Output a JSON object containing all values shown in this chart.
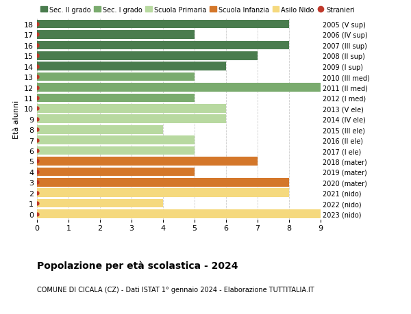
{
  "ages": [
    18,
    17,
    16,
    15,
    14,
    13,
    12,
    11,
    10,
    9,
    8,
    7,
    6,
    5,
    4,
    3,
    2,
    1,
    0
  ],
  "right_labels": [
    "2005 (V sup)",
    "2006 (IV sup)",
    "2007 (III sup)",
    "2008 (II sup)",
    "2009 (I sup)",
    "2010 (III med)",
    "2011 (II med)",
    "2012 (I med)",
    "2013 (V ele)",
    "2014 (IV ele)",
    "2015 (III ele)",
    "2016 (II ele)",
    "2017 (I ele)",
    "2018 (mater)",
    "2019 (mater)",
    "2020 (mater)",
    "2021 (nido)",
    "2022 (nido)",
    "2023 (nido)"
  ],
  "values": [
    8,
    5,
    8,
    7,
    6,
    5,
    9,
    5,
    6,
    6,
    4,
    5,
    5,
    7,
    5,
    8,
    8,
    4,
    9
  ],
  "colors": [
    "#4a7c4e",
    "#4a7c4e",
    "#4a7c4e",
    "#4a7c4e",
    "#4a7c4e",
    "#7aab6e",
    "#7aab6e",
    "#7aab6e",
    "#b8d9a0",
    "#b8d9a0",
    "#b8d9a0",
    "#b8d9a0",
    "#b8d9a0",
    "#d4772a",
    "#d4772a",
    "#d4772a",
    "#f5d97e",
    "#f5d97e",
    "#f5d97e"
  ],
  "dot_color": "#c0392b",
  "background_color": "#ffffff",
  "grid_color": "#cccccc",
  "legend_labels": [
    "Sec. II grado",
    "Sec. I grado",
    "Scuola Primaria",
    "Scuola Infanzia",
    "Asilo Nido",
    "Stranieri"
  ],
  "legend_colors": [
    "#4a7c4e",
    "#7aab6e",
    "#b8d9a0",
    "#d4772a",
    "#f5d97e",
    "#c0392b"
  ],
  "legend_marker_types": [
    "s",
    "s",
    "s",
    "s",
    "s",
    "o"
  ],
  "title": "Popolazione per età scolastica - 2024",
  "subtitle": "COMUNE DI CICALA (CZ) - Dati ISTAT 1° gennaio 2024 - Elaborazione TUTTITALIA.IT",
  "ylabel": "Età alunni",
  "xlim": [
    0,
    9
  ],
  "xticks": [
    0,
    1,
    2,
    3,
    4,
    5,
    6,
    7,
    8,
    9
  ],
  "bar_height": 0.82,
  "ylim_min": -0.55,
  "ylim_max": 18.55
}
